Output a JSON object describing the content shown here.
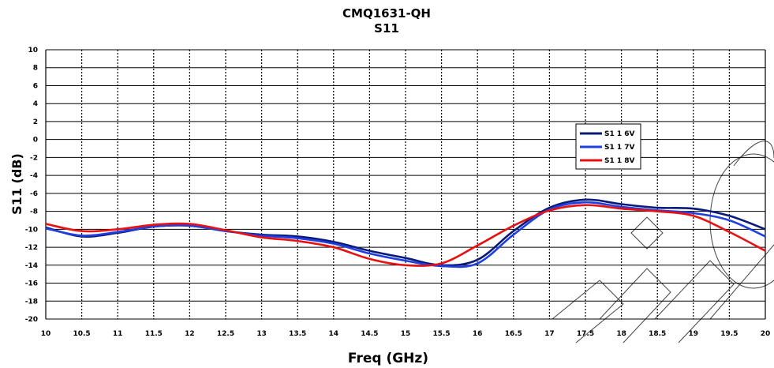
{
  "chart_data": {
    "type": "line",
    "title": "CMQ1631-QH",
    "subtitle": "S11",
    "xlabel": "Freq (GHz)",
    "ylabel": "S11 (dB)",
    "xlim": [
      10,
      20
    ],
    "ylim": [
      -20,
      10
    ],
    "x_ticks": [
      "10",
      "10.5",
      "11",
      "11.5",
      "12",
      "12.5",
      "13",
      "13.5",
      "14",
      "14.5",
      "15",
      "15.5",
      "16",
      "16.5",
      "17",
      "17.5",
      "18",
      "18.5",
      "19",
      "19.5",
      "20"
    ],
    "y_ticks": [
      "10",
      "8",
      "6",
      "4",
      "2",
      "0",
      "-2",
      "-4",
      "-6",
      "-8",
      "-10",
      "-12",
      "-14",
      "-16",
      "-18",
      "-20"
    ],
    "grid": true,
    "legend_position": "right",
    "x": [
      10,
      10.5,
      11,
      11.5,
      12,
      12.5,
      13,
      13.5,
      14,
      14.5,
      15,
      15.5,
      16,
      16.5,
      17,
      17.5,
      18,
      18.5,
      19,
      19.5,
      20
    ],
    "series": [
      {
        "name": "S1 1 6V",
        "color": "#0a1a7a",
        "values": [
          -9.8,
          -10.8,
          -10.4,
          -9.7,
          -9.6,
          -10.2,
          -10.6,
          -10.8,
          -11.4,
          -12.4,
          -13.2,
          -14.0,
          -13.4,
          -10.2,
          -7.6,
          -6.7,
          -7.2,
          -7.6,
          -7.7,
          -8.5,
          -10.0
        ]
      },
      {
        "name": "S1 1 7V",
        "color": "#1f3fe0",
        "values": [
          -9.9,
          -10.7,
          -10.3,
          -9.7,
          -9.6,
          -10.2,
          -10.7,
          -11.0,
          -11.6,
          -12.7,
          -13.5,
          -14.1,
          -13.8,
          -10.6,
          -7.8,
          -7.0,
          -7.5,
          -7.9,
          -8.2,
          -9.0,
          -10.8
        ]
      },
      {
        "name": "S1 1 8V",
        "color": "#e81010",
        "values": [
          -9.4,
          -10.2,
          -10.0,
          -9.5,
          -9.4,
          -10.1,
          -10.9,
          -11.3,
          -12.0,
          -13.3,
          -14.0,
          -13.8,
          -11.8,
          -9.6,
          -7.9,
          -7.3,
          -7.7,
          -8.0,
          -8.5,
          -10.3,
          -12.4
        ]
      }
    ]
  }
}
